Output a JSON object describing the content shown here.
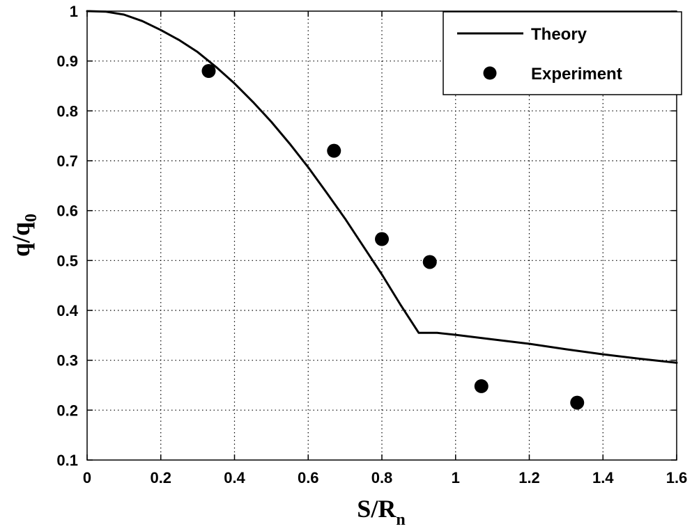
{
  "chart_data": {
    "type": "line",
    "xlabel": {
      "main": "S/R",
      "subscript": "n"
    },
    "ylabel": {
      "main": "q/q",
      "subscript": "0"
    },
    "xlim": [
      0,
      1.6
    ],
    "ylim": [
      0.1,
      1
    ],
    "x_ticks": [
      0,
      0.2,
      0.4,
      0.6,
      0.8,
      1,
      1.2,
      1.4,
      1.6
    ],
    "y_ticks": [
      0.1,
      0.2,
      0.3,
      0.4,
      0.5,
      0.6,
      0.7,
      0.8,
      0.9,
      1
    ],
    "x_tick_labels": [
      "0",
      "0.2",
      "0.4",
      "0.6",
      "0.8",
      "1",
      "1.2",
      "1.4",
      "1.6"
    ],
    "y_tick_labels": [
      "0.1",
      "0.2",
      "0.3",
      "0.4",
      "0.5",
      "0.6",
      "0.7",
      "0.8",
      "0.9",
      "1"
    ],
    "grid": true,
    "legend_position": "top-right",
    "series": [
      {
        "name": "Theory",
        "style": "line",
        "color": "#000000",
        "x": [
          0,
          0.05,
          0.1,
          0.15,
          0.2,
          0.25,
          0.3,
          0.35,
          0.4,
          0.45,
          0.5,
          0.55,
          0.6,
          0.65,
          0.7,
          0.75,
          0.8,
          0.85,
          0.9,
          0.95,
          1.0,
          1.1,
          1.2,
          1.3,
          1.4,
          1.5,
          1.6
        ],
        "y": [
          1.0,
          0.999,
          0.993,
          0.98,
          0.962,
          0.942,
          0.918,
          0.888,
          0.855,
          0.818,
          0.778,
          0.734,
          0.687,
          0.636,
          0.584,
          0.528,
          0.472,
          0.412,
          0.355,
          0.355,
          0.351,
          0.342,
          0.333,
          0.322,
          0.312,
          0.303,
          0.295
        ]
      },
      {
        "name": "Experiment",
        "style": "marker",
        "color": "#000000",
        "x": [
          0.33,
          0.67,
          0.8,
          0.93,
          1.07,
          1.33
        ],
        "y": [
          0.88,
          0.72,
          0.543,
          0.497,
          0.248,
          0.215
        ]
      }
    ]
  }
}
